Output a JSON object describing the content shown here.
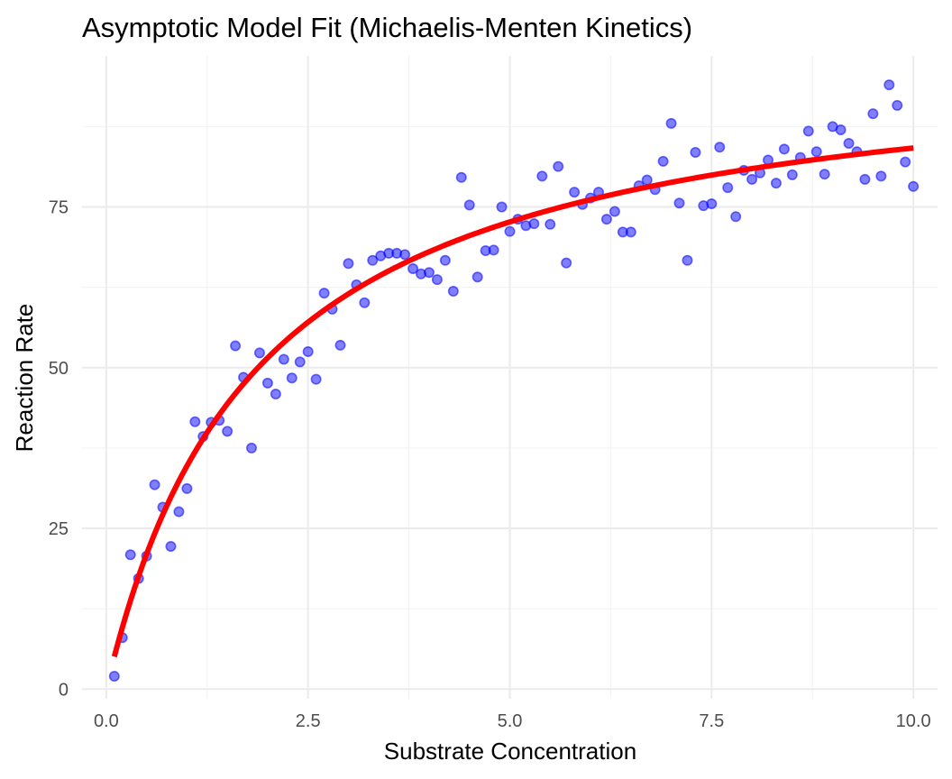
{
  "chart_data": {
    "type": "scatter",
    "title": "Asymptotic Model Fit (Michaelis-Menten Kinetics)",
    "xlabel": "Substrate Concentration",
    "ylabel": "Reaction Rate",
    "xlim": [
      -0.3,
      10.3
    ],
    "ylim": [
      -1.5,
      98.5
    ],
    "x_ticks": [
      0,
      2.5,
      5,
      7.5,
      10
    ],
    "x_tick_labels": [
      "0.0",
      "2.5",
      "5.0",
      "7.5",
      "10.0"
    ],
    "y_ticks": [
      0,
      25,
      50,
      75
    ],
    "y_tick_labels": [
      "0",
      "25",
      "50",
      "75"
    ],
    "grid": true,
    "legend": "none",
    "point_color": "#0000ff",
    "fit_color": "#ff0000",
    "series": [
      {
        "type": "scatter",
        "points": [
          [
            0.1,
            2.0
          ],
          [
            0.2,
            8.0
          ],
          [
            0.3,
            20.9
          ],
          [
            0.4,
            17.2
          ],
          [
            0.5,
            20.7
          ],
          [
            0.6,
            31.8
          ],
          [
            0.7,
            28.3
          ],
          [
            0.8,
            22.2
          ],
          [
            0.9,
            27.6
          ],
          [
            1.0,
            31.2
          ],
          [
            1.1,
            41.6
          ],
          [
            1.2,
            39.3
          ],
          [
            1.3,
            41.5
          ],
          [
            1.4,
            41.8
          ],
          [
            1.5,
            40.1
          ],
          [
            1.6,
            53.4
          ],
          [
            1.7,
            48.5
          ],
          [
            1.8,
            37.5
          ],
          [
            1.9,
            52.3
          ],
          [
            2.0,
            47.6
          ],
          [
            2.1,
            45.9
          ],
          [
            2.2,
            51.3
          ],
          [
            2.3,
            48.4
          ],
          [
            2.4,
            50.9
          ],
          [
            2.5,
            52.5
          ],
          [
            2.6,
            48.2
          ],
          [
            2.7,
            61.6
          ],
          [
            2.8,
            59.1
          ],
          [
            2.9,
            53.5
          ],
          [
            3.0,
            66.2
          ],
          [
            3.1,
            62.9
          ],
          [
            3.2,
            60.1
          ],
          [
            3.3,
            66.7
          ],
          [
            3.4,
            67.4
          ],
          [
            3.5,
            67.8
          ],
          [
            3.6,
            67.8
          ],
          [
            3.7,
            67.6
          ],
          [
            3.8,
            65.4
          ],
          [
            3.9,
            64.6
          ],
          [
            4.0,
            64.8
          ],
          [
            4.1,
            63.7
          ],
          [
            4.2,
            66.7
          ],
          [
            4.3,
            61.9
          ],
          [
            4.4,
            79.6
          ],
          [
            4.5,
            75.3
          ],
          [
            4.6,
            64.1
          ],
          [
            4.7,
            68.2
          ],
          [
            4.8,
            68.3
          ],
          [
            4.9,
            75.0
          ],
          [
            5.0,
            71.2
          ],
          [
            5.1,
            73.1
          ],
          [
            5.2,
            72.1
          ],
          [
            5.3,
            72.4
          ],
          [
            5.4,
            79.8
          ],
          [
            5.5,
            72.3
          ],
          [
            5.6,
            81.3
          ],
          [
            5.7,
            66.3
          ],
          [
            5.8,
            77.3
          ],
          [
            5.9,
            75.4
          ],
          [
            6.0,
            76.4
          ],
          [
            6.1,
            77.3
          ],
          [
            6.2,
            73.1
          ],
          [
            6.3,
            74.3
          ],
          [
            6.4,
            71.1
          ],
          [
            6.5,
            71.1
          ],
          [
            6.6,
            78.3
          ],
          [
            6.7,
            79.2
          ],
          [
            6.8,
            77.7
          ],
          [
            6.9,
            82.1
          ],
          [
            7.0,
            88.0
          ],
          [
            7.1,
            75.6
          ],
          [
            7.2,
            66.7
          ],
          [
            7.3,
            83.5
          ],
          [
            7.4,
            75.2
          ],
          [
            7.5,
            75.5
          ],
          [
            7.6,
            84.3
          ],
          [
            7.7,
            78.0
          ],
          [
            7.8,
            73.5
          ],
          [
            7.9,
            80.7
          ],
          [
            8.0,
            79.3
          ],
          [
            8.1,
            80.3
          ],
          [
            8.2,
            82.3
          ],
          [
            8.3,
            78.7
          ],
          [
            8.4,
            84.0
          ],
          [
            8.5,
            80.0
          ],
          [
            8.6,
            82.7
          ],
          [
            8.7,
            86.8
          ],
          [
            8.8,
            83.6
          ],
          [
            8.9,
            80.1
          ],
          [
            9.0,
            87.5
          ],
          [
            9.1,
            87.0
          ],
          [
            9.2,
            84.9
          ],
          [
            9.3,
            83.6
          ],
          [
            9.4,
            79.3
          ],
          [
            9.5,
            89.5
          ],
          [
            9.6,
            79.8
          ],
          [
            9.7,
            94.0
          ],
          [
            9.8,
            90.8
          ],
          [
            9.9,
            82.0
          ],
          [
            10.0,
            78.2
          ]
        ]
      },
      {
        "type": "line",
        "model": "michaelis-menten",
        "params": {
          "Vmax": 100,
          "Km": 1.88
        },
        "x_range": [
          0.1,
          10.0
        ]
      }
    ]
  }
}
